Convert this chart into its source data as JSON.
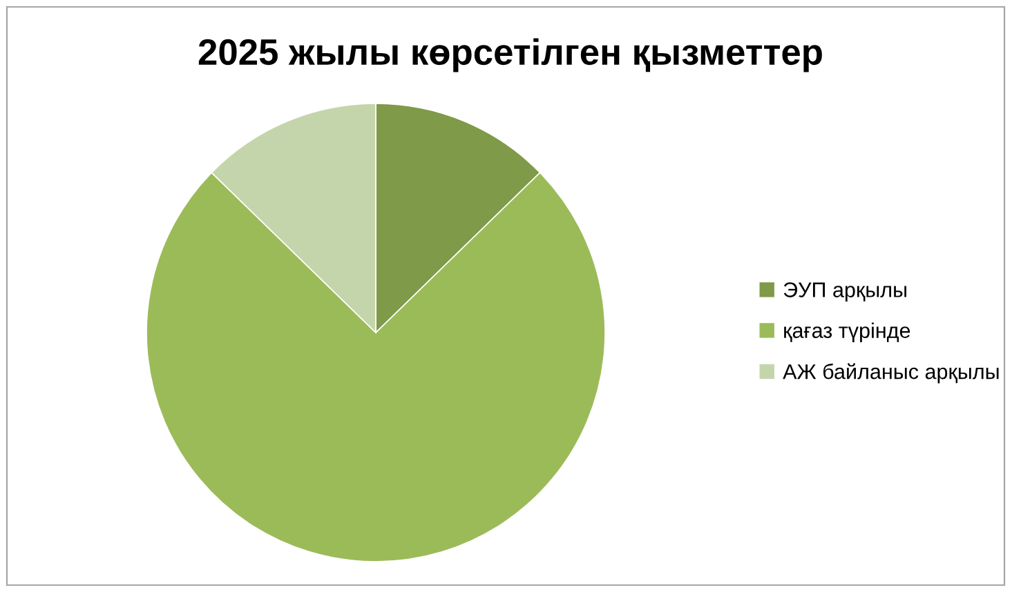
{
  "chart_data": {
    "type": "pie",
    "title": "2025 жылы көрсетілген қызметтер",
    "categories": [
      "ЭУП арқылы",
      "қағаз түрінде",
      "АЖ байланыс арқылы"
    ],
    "values": [
      12.7,
      74.6,
      12.7
    ],
    "colors": [
      "#7f9a48",
      "#9bbb59",
      "#c5d5ab"
    ],
    "legend": "right"
  }
}
